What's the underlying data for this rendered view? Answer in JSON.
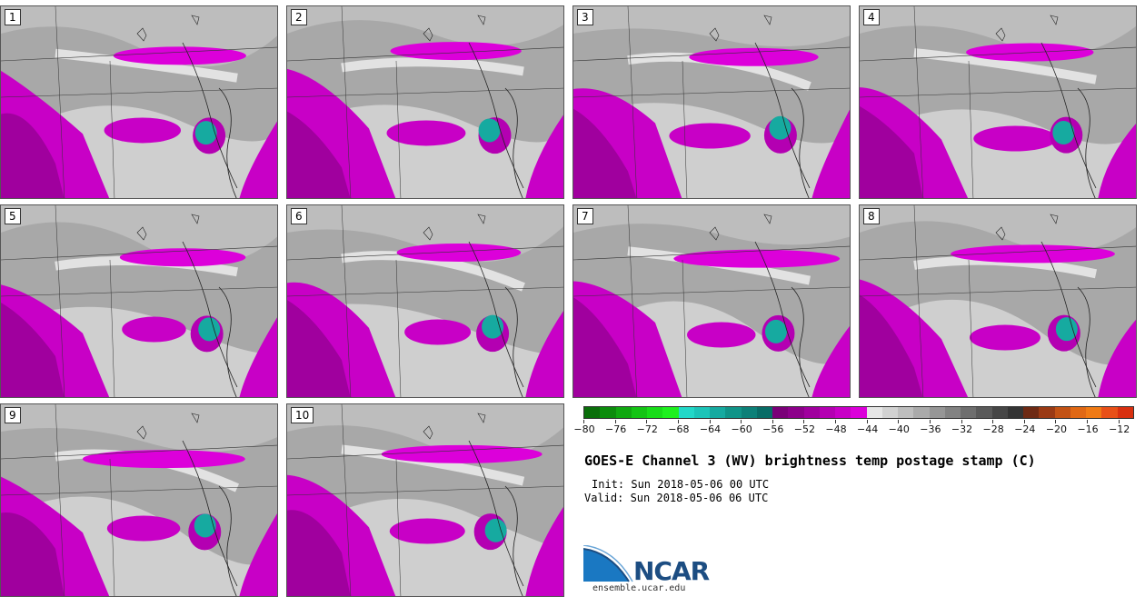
{
  "panels": [
    {
      "label": "1"
    },
    {
      "label": "2"
    },
    {
      "label": "3"
    },
    {
      "label": "4"
    },
    {
      "label": "5"
    },
    {
      "label": "6"
    },
    {
      "label": "7"
    },
    {
      "label": "8"
    },
    {
      "label": "9"
    },
    {
      "label": "10"
    }
  ],
  "colorbar": {
    "colors": [
      "#0a6e0a",
      "#0c8c0c",
      "#10a810",
      "#14c414",
      "#18dc18",
      "#1ef01e",
      "#22d8c8",
      "#1cc4b8",
      "#16aaa0",
      "#109488",
      "#0c8078",
      "#086c66",
      "#7a0078",
      "#8c008a",
      "#a0009e",
      "#b400b2",
      "#c800c6",
      "#dc00da",
      "#e6e6e6",
      "#d2d2d2",
      "#bebebe",
      "#aaaaaa",
      "#969696",
      "#828282",
      "#6e6e6e",
      "#5a5a5a",
      "#464646",
      "#343434",
      "#6e2a14",
      "#9a3a14",
      "#c25214",
      "#e06814",
      "#f07a14",
      "#e85018",
      "#d83010"
    ],
    "tick_labels": [
      "−80",
      "−76",
      "−72",
      "−68",
      "−64",
      "−60",
      "−56",
      "−52",
      "−48",
      "−44",
      "−40",
      "−36",
      "−32",
      "−28",
      "−24",
      "−20",
      "−16",
      "−12"
    ]
  },
  "title": "GOES-E Channel 3 (WV) brightness temp postage stamp (C)",
  "init": "Init: Sun 2018-05-06 00 UTC",
  "valid": "Valid: Sun 2018-05-06 06 UTC",
  "logo": {
    "text": "NCAR",
    "site": "ensemble.ucar.edu"
  }
}
